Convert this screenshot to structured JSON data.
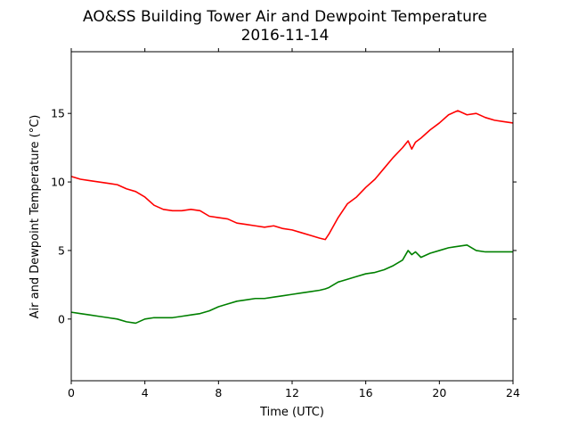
{
  "chart_data": {
    "type": "line",
    "title": "AO&SS Building Tower Air and Dewpoint Temperature",
    "subtitle": "2016-11-14",
    "xlabel": "Time (UTC)",
    "ylabel": "Air and Dewpoint Temperature (°C)",
    "xlim": [
      0,
      24
    ],
    "ylim": [
      -4.5,
      19.5
    ],
    "xticks": [
      0,
      4,
      8,
      12,
      16,
      20,
      24
    ],
    "yticks": [
      0,
      5,
      10,
      15
    ],
    "grid": false,
    "legend": "none",
    "x": [
      0,
      0.5,
      1,
      1.5,
      2,
      2.5,
      3,
      3.5,
      4,
      4.5,
      5,
      5.5,
      6,
      6.5,
      7,
      7.5,
      8,
      8.5,
      9,
      9.5,
      10,
      10.5,
      11,
      11.5,
      12,
      12.5,
      13,
      13.5,
      13.8,
      14,
      14.5,
      15,
      15.5,
      16,
      16.5,
      17,
      17.5,
      18,
      18.3,
      18.5,
      18.7,
      19,
      19.5,
      20,
      20.5,
      21,
      21.5,
      22,
      22.5,
      23,
      23.5,
      24
    ],
    "series": [
      {
        "color": "#ff0000",
        "values": [
          10.4,
          10.2,
          10.1,
          10.0,
          9.9,
          9.8,
          9.5,
          9.3,
          8.9,
          8.3,
          8.0,
          7.9,
          7.9,
          8.0,
          7.9,
          7.5,
          7.4,
          7.3,
          7.0,
          6.9,
          6.8,
          6.7,
          6.8,
          6.6,
          6.5,
          6.3,
          6.1,
          5.9,
          5.8,
          6.2,
          7.4,
          8.4,
          8.9,
          9.6,
          10.2,
          11.0,
          11.8,
          12.5,
          13.0,
          12.4,
          12.9,
          13.2,
          13.8,
          14.3,
          14.9,
          15.2,
          14.9,
          15.0,
          14.7,
          14.5,
          14.4,
          14.3
        ]
      },
      {
        "color": "#008000",
        "values": [
          0.5,
          0.4,
          0.3,
          0.2,
          0.1,
          0.0,
          -0.2,
          -0.3,
          0.0,
          0.1,
          0.1,
          0.1,
          0.2,
          0.3,
          0.4,
          0.6,
          0.9,
          1.1,
          1.3,
          1.4,
          1.5,
          1.5,
          1.6,
          1.7,
          1.8,
          1.9,
          2.0,
          2.1,
          2.2,
          2.3,
          2.7,
          2.9,
          3.1,
          3.3,
          3.4,
          3.6,
          3.9,
          4.3,
          5.0,
          4.7,
          4.9,
          4.5,
          4.8,
          5.0,
          5.2,
          5.3,
          5.4,
          5.0,
          4.9,
          4.9,
          4.9,
          4.9
        ]
      }
    ]
  }
}
